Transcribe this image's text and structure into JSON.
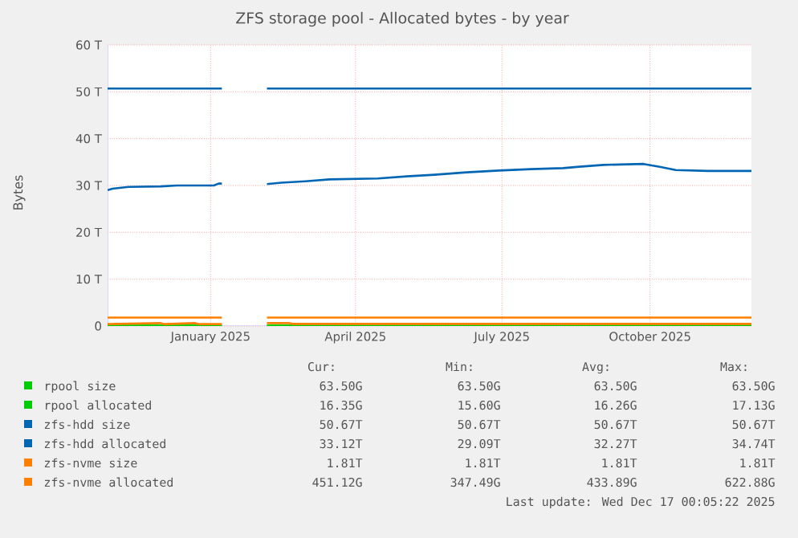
{
  "chart_data": {
    "type": "line",
    "title": "ZFS storage pool - Allocated bytes - by year",
    "ylabel": "Bytes",
    "xlim": [
      "2024-11-12",
      "2025-12-17"
    ],
    "ylim": [
      0,
      60
    ],
    "xticks": [
      {
        "value": "2025-01-15",
        "label": "January 2025"
      },
      {
        "value": "2025-04-15",
        "label": "April 2025"
      },
      {
        "value": "2025-07-15",
        "label": "July 2025"
      },
      {
        "value": "2025-10-15",
        "label": "October 2025"
      }
    ],
    "yticks": [
      {
        "value": 0,
        "label": "0"
      },
      {
        "value": 10,
        "label": "10 T"
      },
      {
        "value": 20,
        "label": "20 T"
      },
      {
        "value": 30,
        "label": "30 T"
      },
      {
        "value": 40,
        "label": "40 T"
      },
      {
        "value": 50,
        "label": "50 T"
      },
      {
        "value": 60,
        "label": "60 T"
      }
    ],
    "grid": true,
    "legend": "bottom",
    "marker": "none",
    "line_style": "solid",
    "series": [
      {
        "name": "rpool size",
        "color": "#00cc00",
        "x": [
          "2024-11-12",
          "2025-01-22",
          "2025-02-01",
          "2025-02-19",
          "2025-12-17"
        ],
        "values": [
          0.06,
          0.06,
          null,
          0.06,
          0.06
        ]
      },
      {
        "name": "rpool allocated",
        "color": "#00cc00",
        "x": [
          "2024-11-12",
          "2025-01-22",
          "2025-02-01",
          "2025-02-19",
          "2025-12-17"
        ],
        "values": [
          0.02,
          0.02,
          null,
          0.02,
          0.02
        ]
      },
      {
        "name": "zfs-hdd size",
        "color": "#0066b3",
        "x": [
          "2024-11-12",
          "2025-01-22",
          "2025-02-01",
          "2025-02-19",
          "2025-12-17"
        ],
        "values": [
          50.7,
          50.7,
          null,
          50.7,
          50.7
        ]
      },
      {
        "name": "zfs-hdd allocated",
        "color": "#0066b3",
        "x": [
          "2024-11-12",
          "2024-11-15",
          "2024-11-25",
          "2024-12-15",
          "2024-12-25",
          "2025-01-17",
          "2025-01-20",
          "2025-01-22",
          "2025-02-01",
          "2025-02-19",
          "2025-02-28",
          "2025-03-15",
          "2025-03-30",
          "2025-04-29",
          "2025-05-19",
          "2025-06-03",
          "2025-06-23",
          "2025-07-13",
          "2025-08-02",
          "2025-08-22",
          "2025-09-01",
          "2025-09-16",
          "2025-10-11",
          "2025-10-21",
          "2025-10-31",
          "2025-11-20",
          "2025-12-17"
        ],
        "values": [
          29.0,
          29.3,
          29.7,
          29.8,
          30.0,
          30.0,
          30.4,
          30.4,
          null,
          30.3,
          30.6,
          30.9,
          31.3,
          31.5,
          32.0,
          32.3,
          32.8,
          33.2,
          33.5,
          33.7,
          34.0,
          34.4,
          34.6,
          34.0,
          33.3,
          33.1,
          33.1
        ]
      },
      {
        "name": "zfs-nvme size",
        "color": "#ff8000",
        "x": [
          "2024-11-12",
          "2025-01-22",
          "2025-02-01",
          "2025-02-19",
          "2025-12-17"
        ],
        "values": [
          1.8,
          1.8,
          null,
          1.8,
          1.8
        ]
      },
      {
        "name": "zfs-nvme allocated",
        "color": "#ff8000",
        "x": [
          "2024-11-12",
          "2024-12-15",
          "2024-12-17",
          "2025-01-05",
          "2025-01-08",
          "2025-01-22",
          "2025-02-01",
          "2025-02-19",
          "2025-03-05",
          "2025-03-07",
          "2025-12-17"
        ],
        "values": [
          0.4,
          0.62,
          0.4,
          0.62,
          0.4,
          0.4,
          null,
          0.62,
          0.62,
          0.45,
          0.45
        ]
      }
    ],
    "annotations": [
      "Cur:",
      "Min:",
      "Avg:",
      "Max:",
      "63.50G",
      "63.50G",
      "63.50G",
      "63.50G",
      "16.35G",
      "15.60G",
      "16.26G",
      "17.13G",
      "50.67T",
      "50.67T",
      "50.67T",
      "50.67T",
      "33.12T",
      "29.09T",
      "32.27T",
      "34.74T",
      "1.81T",
      "1.81T",
      "1.81T",
      "1.81T",
      "451.12G",
      "347.49G",
      "433.89G",
      "622.88G",
      "Last update: Wed Dec 17 00:05:22 2025"
    ]
  }
}
